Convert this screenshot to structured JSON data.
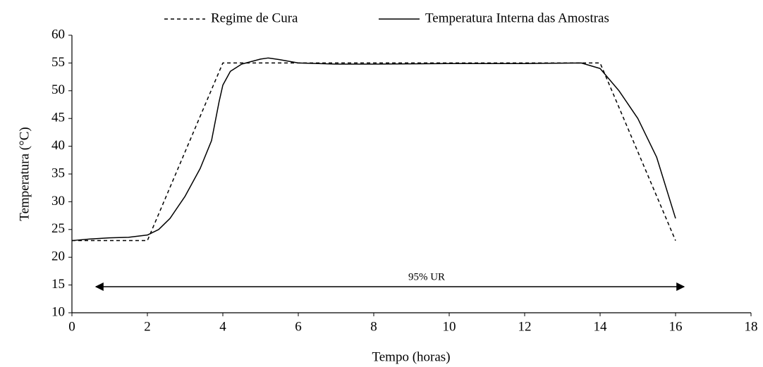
{
  "chart_data": {
    "type": "line",
    "xlabel": "Tempo (horas)",
    "ylabel": "Temperatura (°C)",
    "annotation": "95% UR",
    "xlim": [
      0,
      18
    ],
    "xticks": [
      0,
      2,
      4,
      6,
      8,
      10,
      12,
      14,
      16,
      18
    ],
    "ylim": [
      10,
      60
    ],
    "yticks": [
      10,
      15,
      20,
      25,
      30,
      35,
      40,
      45,
      50,
      55,
      60
    ],
    "series": [
      {
        "name": "Regime de Cura",
        "color": "#000000",
        "dash": true,
        "x": [
          0,
          2,
          4,
          14,
          16
        ],
        "values": [
          23,
          23,
          55,
          55,
          23
        ]
      },
      {
        "name": "Temperatura Interna das Amostras",
        "color": "#000000",
        "dash": false,
        "x": [
          0,
          0.5,
          1,
          1.5,
          2,
          2.3,
          2.6,
          3,
          3.4,
          3.7,
          3.9,
          4,
          4.2,
          4.5,
          5,
          5.2,
          5.5,
          6,
          7,
          8,
          10,
          12,
          13.5,
          14,
          14.5,
          15,
          15.5,
          16
        ],
        "values": [
          23,
          23.3,
          23.5,
          23.6,
          24,
          25,
          27,
          31,
          36,
          41,
          48,
          51,
          53.5,
          54.8,
          55.7,
          55.9,
          55.6,
          55,
          54.8,
          54.8,
          54.9,
          54.9,
          55,
          54,
          50,
          45,
          38,
          27
        ]
      }
    ]
  }
}
